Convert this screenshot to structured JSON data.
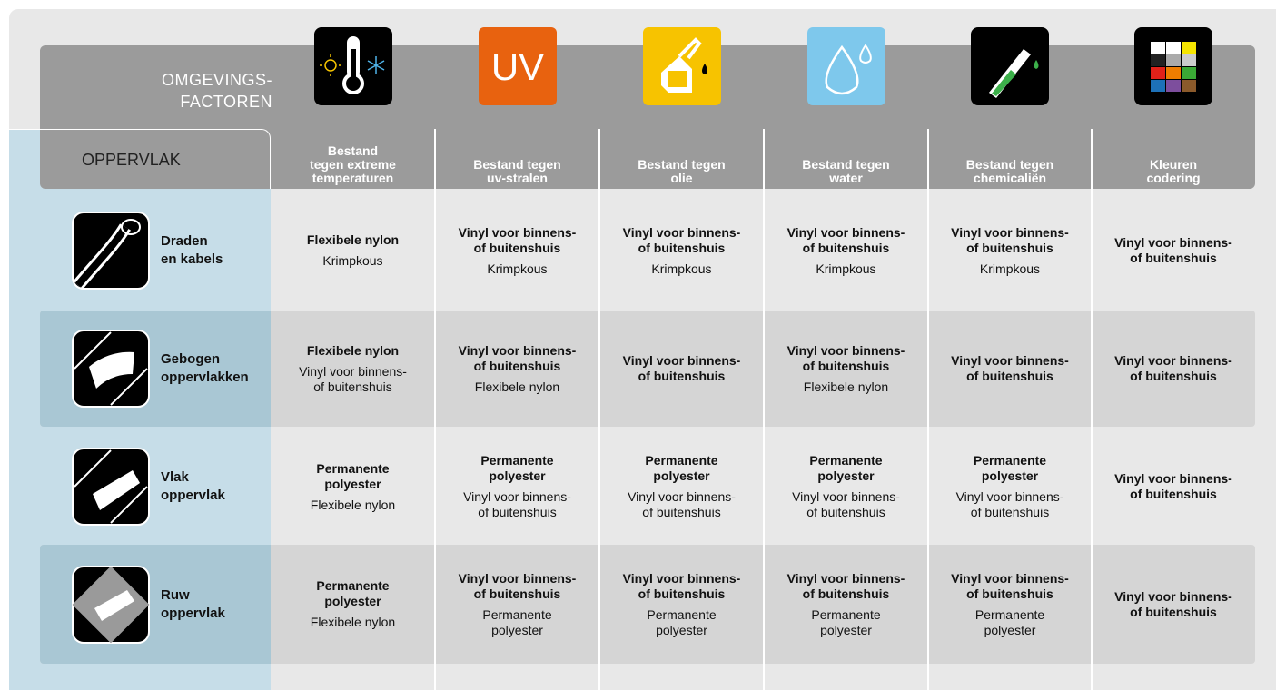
{
  "header": {
    "factors_label": [
      "OMGEVINGS-",
      "FACTOREN"
    ],
    "surface_label": "OPPERVLAK"
  },
  "columns": [
    {
      "title": [
        "Bestand",
        "tegen extreme",
        "temperaturen"
      ]
    },
    {
      "icon_text": "UV",
      "title": [
        "Bestand tegen",
        "uv-stralen"
      ]
    },
    {
      "title": [
        "Bestand tegen",
        "olie"
      ]
    },
    {
      "title": [
        "Bestand tegen",
        "water"
      ]
    },
    {
      "title": [
        "Bestand tegen",
        "chemicaliën"
      ]
    },
    {
      "title": [
        "Kleuren",
        "codering"
      ]
    }
  ],
  "rows": [
    {
      "label": [
        "Draden",
        "en kabels"
      ],
      "cells": [
        [
          "Flexibele nylon",
          "Krimpkous"
        ],
        [
          "Vinyl voor binnens- of buitenshuis",
          "Krimpkous"
        ],
        [
          "Vinyl voor binnens- of buitenshuis",
          "Krimpkous"
        ],
        [
          "Vinyl voor binnens- of buitenshuis",
          "Krimpkous"
        ],
        [
          "Vinyl voor binnens- of buitenshuis",
          "Krimpkous"
        ],
        [
          "Vinyl voor binnens- of buitenshuis"
        ]
      ]
    },
    {
      "label": [
        "Gebogen",
        "oppervlakken"
      ],
      "cells": [
        [
          "Flexibele nylon",
          "Vinyl voor binnens- of buitenshuis"
        ],
        [
          "Vinyl voor binnens- of buitenshuis",
          "Flexibele nylon"
        ],
        [
          "Vinyl voor binnens- of buitenshuis"
        ],
        [
          "Vinyl voor binnens- of buitenshuis",
          "Flexibele nylon"
        ],
        [
          "Vinyl voor binnens- of buitenshuis"
        ],
        [
          "Vinyl voor binnens- of buitenshuis"
        ]
      ]
    },
    {
      "label": [
        "Vlak",
        "oppervlak"
      ],
      "cells": [
        [
          "Permanente polyester",
          "Flexibele nylon"
        ],
        [
          "Permanente polyester",
          "Vinyl voor binnens- of buitenshuis"
        ],
        [
          "Permanente polyester",
          "Vinyl voor binnens- of buitenshuis"
        ],
        [
          "Permanente polyester",
          "Vinyl voor binnens- of buitenshuis"
        ],
        [
          "Permanente polyester",
          "Vinyl voor binnens- of buitenshuis"
        ],
        [
          "Vinyl voor binnens- of buitenshuis"
        ]
      ]
    },
    {
      "label": [
        "Ruw",
        "oppervlak"
      ],
      "cells": [
        [
          "Permanente polyester",
          "Flexibele nylon"
        ],
        [
          "Vinyl voor binnens- of buitenshuis",
          "Permanente polyester"
        ],
        [
          "Vinyl voor binnens- of buitenshuis",
          "Permanente polyester"
        ],
        [
          "Vinyl voor binnens- of buitenshuis",
          "Permanente polyester"
        ],
        [
          "Vinyl voor binnens- of buitenshuis",
          "Permanente polyester"
        ],
        [
          "Vinyl voor binnens- of buitenshuis"
        ]
      ]
    }
  ]
}
